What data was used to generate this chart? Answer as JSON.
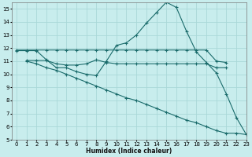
{
  "background_color": "#c8eded",
  "grid_color": "#aad8d8",
  "line_color": "#1a6b6b",
  "xlabel": "Humidex (Indice chaleur)",
  "xlim": [
    -0.5,
    23
  ],
  "ylim": [
    5,
    15.5
  ],
  "yticks": [
    5,
    6,
    7,
    8,
    9,
    10,
    11,
    12,
    13,
    14,
    15
  ],
  "xticks": [
    0,
    1,
    2,
    3,
    4,
    5,
    6,
    7,
    8,
    9,
    10,
    11,
    12,
    13,
    14,
    15,
    16,
    17,
    18,
    19,
    20,
    21,
    22,
    23
  ],
  "lines": [
    {
      "x": [
        0,
        1,
        2,
        3,
        4,
        5,
        6,
        7,
        8,
        9,
        10,
        11,
        12,
        13,
        14,
        15,
        16,
        17,
        18,
        19,
        20,
        21,
        22,
        23
      ],
      "y": [
        11.8,
        11.8,
        11.8,
        11.1,
        10.5,
        10.5,
        10.2,
        10.0,
        9.9,
        11.0,
        12.2,
        12.4,
        13.0,
        13.9,
        14.7,
        15.5,
        15.1,
        13.3,
        11.7,
        10.9,
        10.1,
        8.5,
        6.7,
        5.4
      ]
    },
    {
      "x": [
        0,
        1,
        2,
        3,
        4,
        5,
        6,
        7,
        8,
        9,
        10,
        11,
        12,
        13,
        14,
        15,
        16,
        17,
        18,
        19,
        20,
        21
      ],
      "y": [
        11.85,
        11.85,
        11.85,
        11.85,
        11.85,
        11.85,
        11.85,
        11.85,
        11.85,
        11.85,
        11.85,
        11.85,
        11.85,
        11.85,
        11.85,
        11.85,
        11.85,
        11.85,
        11.85,
        11.85,
        11.0,
        10.9
      ]
    },
    {
      "x": [
        1,
        2,
        3,
        4,
        5,
        6,
        7,
        8,
        9,
        10,
        11,
        12,
        13,
        14,
        15,
        16,
        17,
        18,
        19,
        20,
        21
      ],
      "y": [
        11.05,
        11.05,
        11.05,
        10.8,
        10.7,
        10.7,
        10.8,
        11.1,
        10.9,
        10.8,
        10.8,
        10.8,
        10.8,
        10.8,
        10.8,
        10.8,
        10.8,
        10.8,
        10.8,
        10.5,
        10.5
      ]
    },
    {
      "x": [
        1,
        2,
        3,
        4,
        5,
        6,
        7,
        8,
        9,
        10,
        11,
        12,
        13,
        14,
        15,
        16,
        17,
        18,
        19,
        20,
        21,
        22,
        23
      ],
      "y": [
        11.0,
        10.8,
        10.5,
        10.3,
        10.0,
        9.7,
        9.4,
        9.1,
        8.8,
        8.5,
        8.2,
        8.0,
        7.7,
        7.4,
        7.1,
        6.8,
        6.5,
        6.3,
        6.0,
        5.7,
        5.5,
        5.5,
        5.4
      ]
    }
  ]
}
